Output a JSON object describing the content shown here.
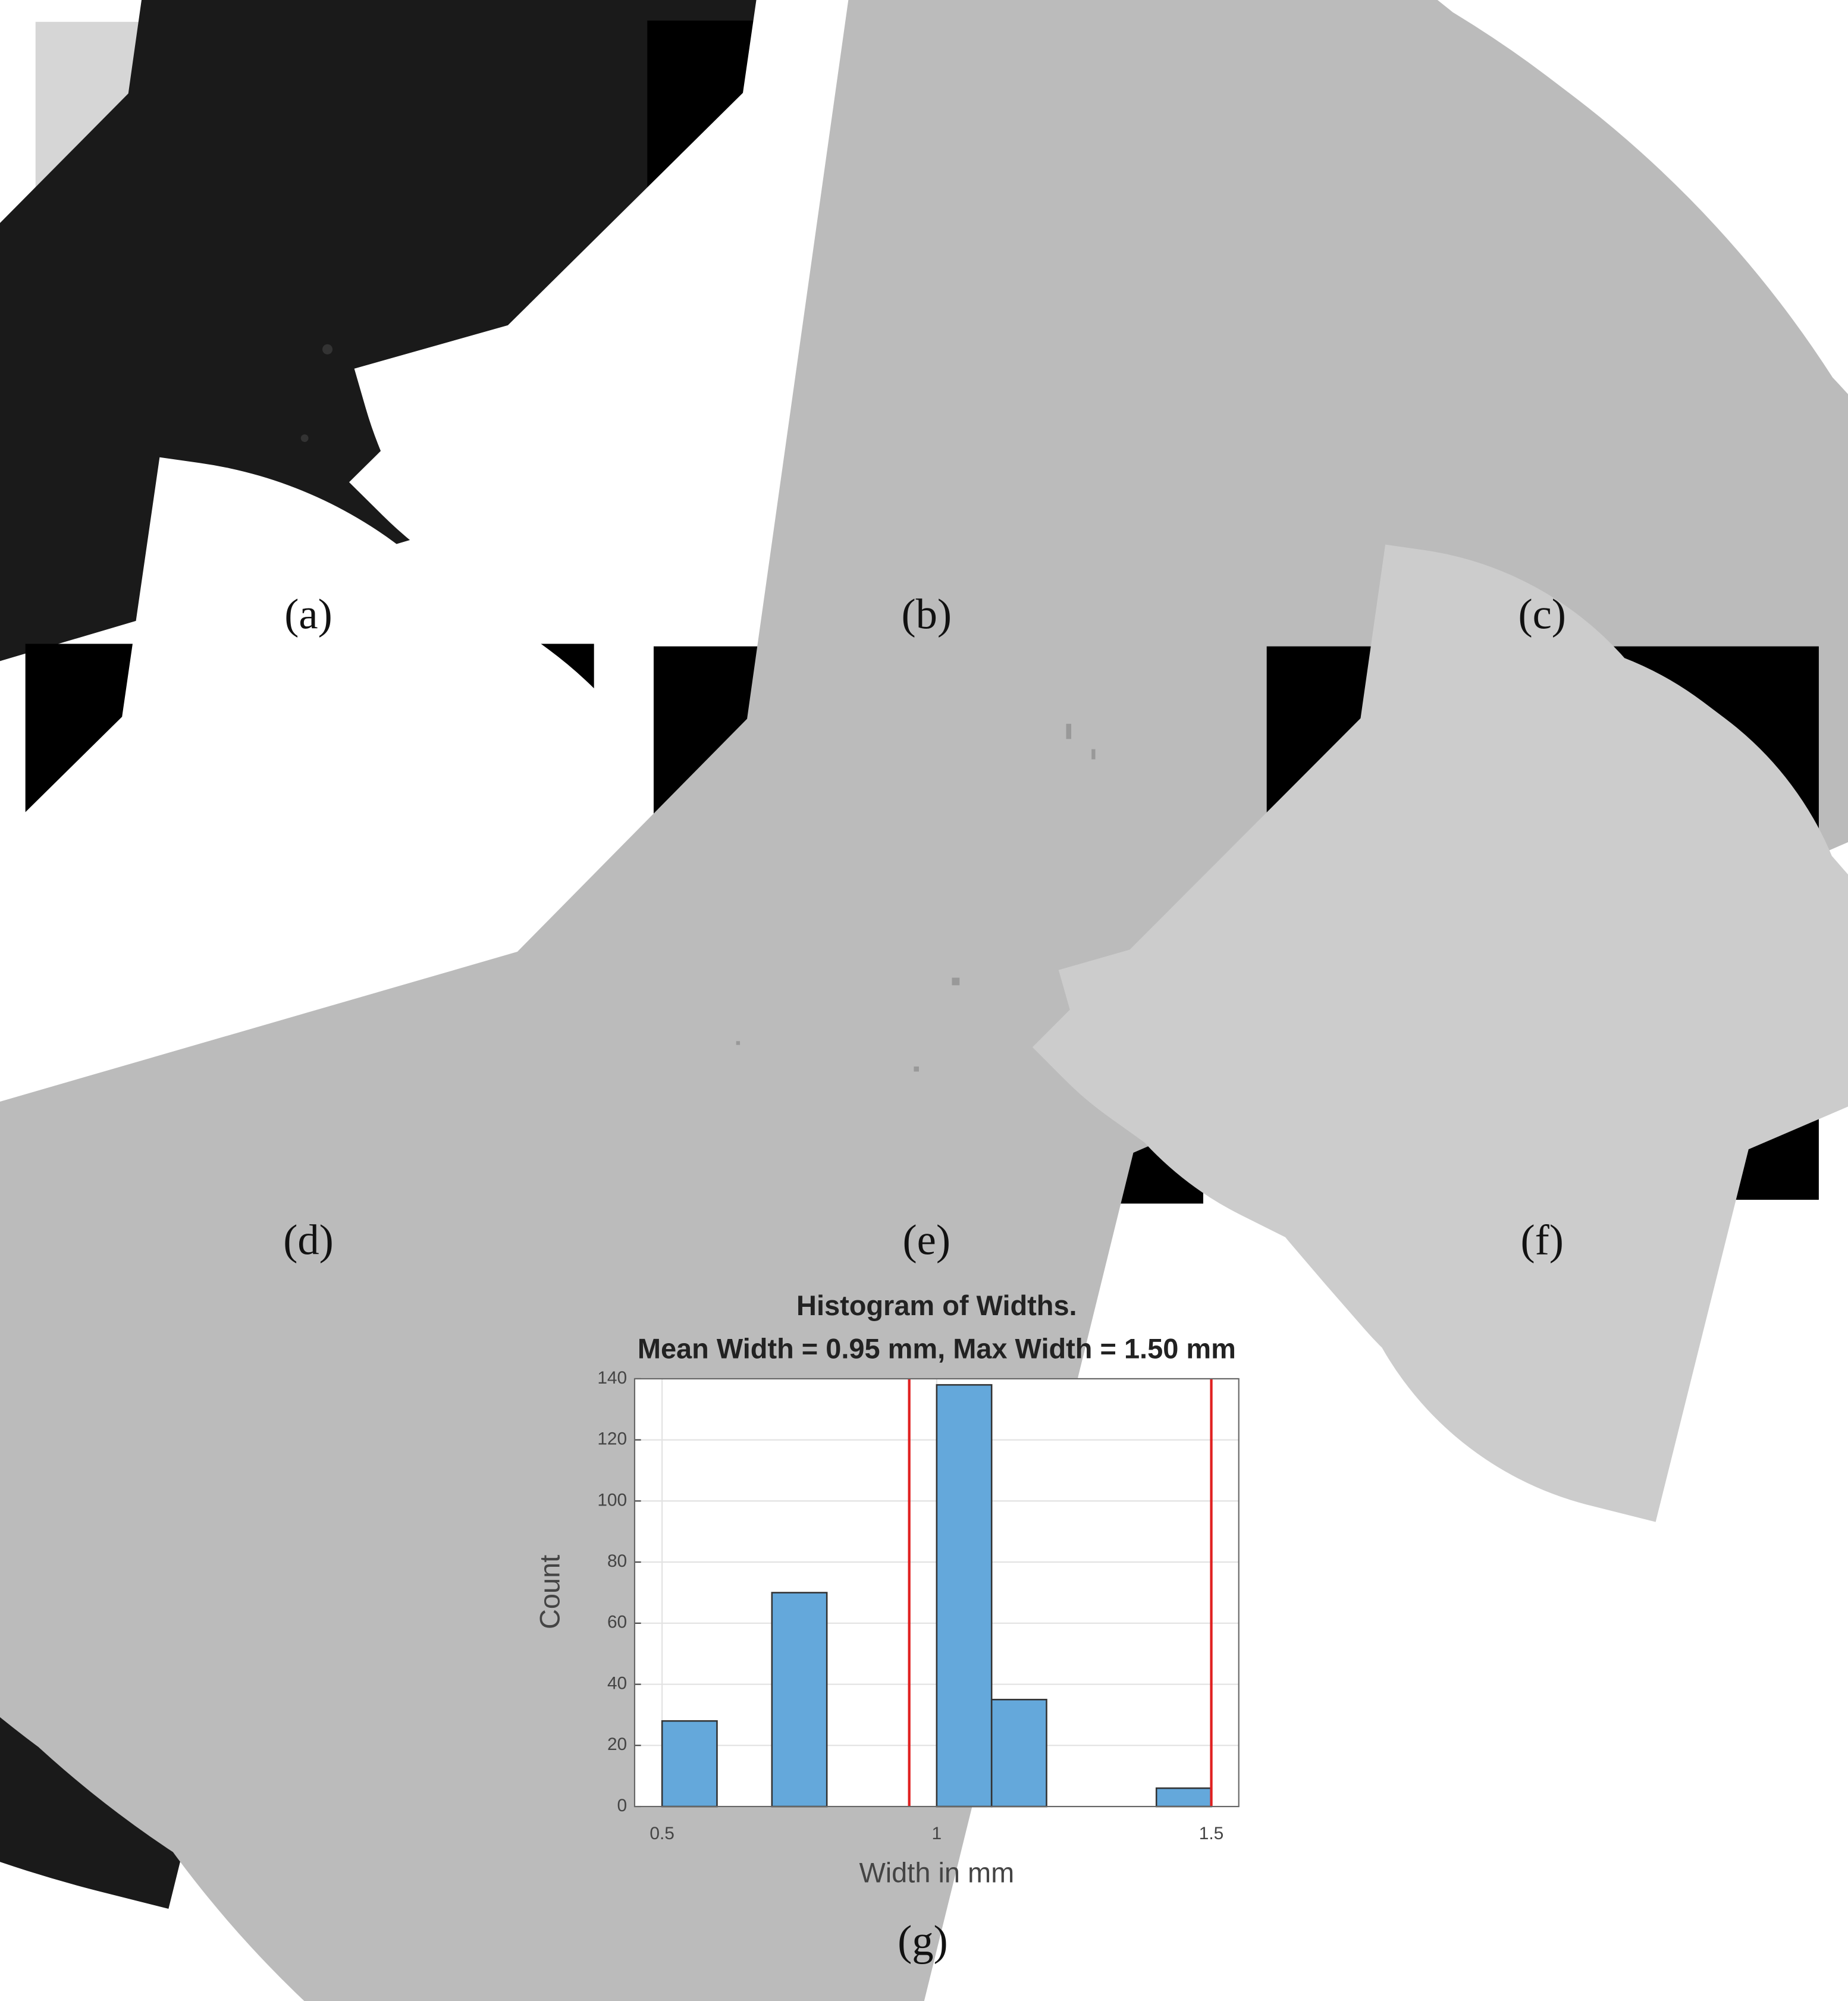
{
  "panel_labels": [
    "(a)",
    "(b)",
    "(c)",
    "(d)",
    "(e)",
    "(f)",
    "(g)"
  ],
  "chart_data": {
    "type": "histogram",
    "title": [
      "Histogram of Widths.",
      "Mean Width = 0.95 mm,  Max Width = 1.50 mm"
    ],
    "x_label": "Width in mm",
    "y_label": "Count",
    "bins": [
      0.5,
      0.6,
      0.7,
      0.8,
      0.9,
      1.0,
      1.1,
      1.2,
      1.3,
      1.4,
      1.5
    ],
    "values": [
      28,
      0,
      70,
      0,
      0,
      138,
      35,
      0,
      0,
      6
    ],
    "color": "#64a8db",
    "xlim": [
      0.45,
      1.55
    ],
    "xticks": [
      0.5,
      1,
      1.5
    ],
    "ylim": [
      0,
      140
    ],
    "yticks": [
      0,
      20,
      40,
      60,
      80,
      100,
      120,
      140
    ],
    "grid": true,
    "vlines": [
      {
        "value": 0.95,
        "color": "#e02020"
      },
      {
        "value": 1.5,
        "color": "#e02020"
      }
    ]
  }
}
